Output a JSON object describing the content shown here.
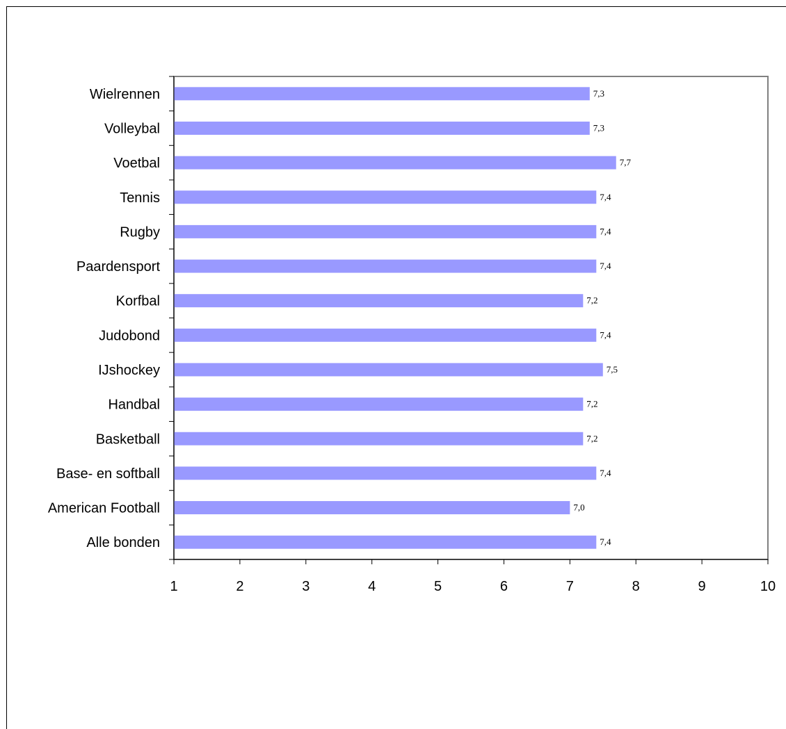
{
  "chart_data": {
    "type": "bar",
    "orientation": "horizontal",
    "categories": [
      "Wielrennen",
      "Volleybal",
      "Voetbal",
      "Tennis",
      "Rugby",
      "Paardensport",
      "Korfbal",
      "Judobond",
      "IJshockey",
      "Handbal",
      "Basketball",
      "Base- en softball",
      "American Football",
      "Alle bonden"
    ],
    "values": [
      7.3,
      7.3,
      7.7,
      7.4,
      7.4,
      7.4,
      7.2,
      7.4,
      7.5,
      7.2,
      7.2,
      7.4,
      7.0,
      7.4
    ],
    "value_labels": [
      "7,3",
      "7,3",
      "7,7",
      "7,4",
      "7,4",
      "7,4",
      "7,2",
      "7,4",
      "7,5",
      "7,2",
      "7,2",
      "7,4",
      "7,0",
      "7,4"
    ],
    "xlim": [
      1,
      10
    ],
    "x_ticks": [
      "1",
      "2",
      "3",
      "4",
      "5",
      "6",
      "7",
      "8",
      "9",
      "10"
    ],
    "title": "",
    "xlabel": "",
    "ylabel": "",
    "grid": false,
    "legend": "none",
    "bar_color": "#9999ff",
    "axis_color": "#808080"
  }
}
